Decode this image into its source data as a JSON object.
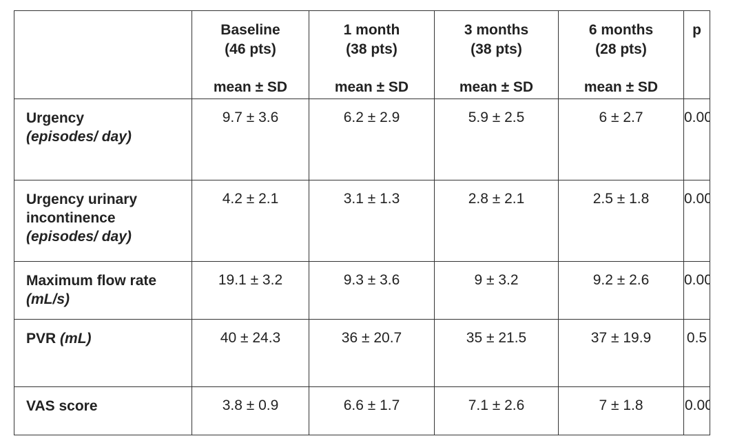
{
  "header": {
    "label_col": "",
    "columns": [
      {
        "title": "Baseline",
        "subtitle": "(46 pts)",
        "stat": "mean ± SD"
      },
      {
        "title": "1 month",
        "subtitle": "(38 pts)",
        "stat": "mean ± SD"
      },
      {
        "title": "3 months",
        "subtitle": "(38 pts)",
        "stat": "mean ± SD"
      },
      {
        "title": "6 months",
        "subtitle": "(28 pts)",
        "stat": "mean ± SD"
      }
    ],
    "p_col": "p"
  },
  "rows": [
    {
      "label": "Urgency",
      "label_line2": "",
      "unit": "(episodes/ day)",
      "values": [
        "9.7 ± 3.6",
        "6.2 ± 2.9",
        "5.9 ± 2.5",
        "6 ± 2.7"
      ],
      "p": "0.00"
    },
    {
      "label": "Urgency urinary",
      "label_line2": "incontinence",
      "unit": "(episodes/ day)",
      "values": [
        "4.2 ± 2.1",
        "3.1 ± 1.3",
        "2.8 ± 2.1",
        "2.5 ± 1.8"
      ],
      "p": "0.00"
    },
    {
      "label": "Maximum flow rate",
      "label_line2": "",
      "unit": "(mL/s)",
      "values": [
        "19.1 ± 3.2",
        "9.3 ± 3.6",
        "9 ± 3.2",
        "9.2 ± 2.6"
      ],
      "p": "0.00"
    },
    {
      "label": "PVR",
      "label_line2": "",
      "unit": "(mL)",
      "values": [
        "40 ± 24.3",
        "36 ± 20.7",
        "35 ± 21.5",
        "37 ± 19.9"
      ],
      "p": "0.5"
    },
    {
      "label": "VAS score",
      "label_line2": "",
      "unit": "",
      "values": [
        "3.8 ± 0.9",
        "6.6 ± 1.7",
        "7.1 ± 2.6",
        "7 ± 1.8"
      ],
      "p": "0.00"
    }
  ]
}
